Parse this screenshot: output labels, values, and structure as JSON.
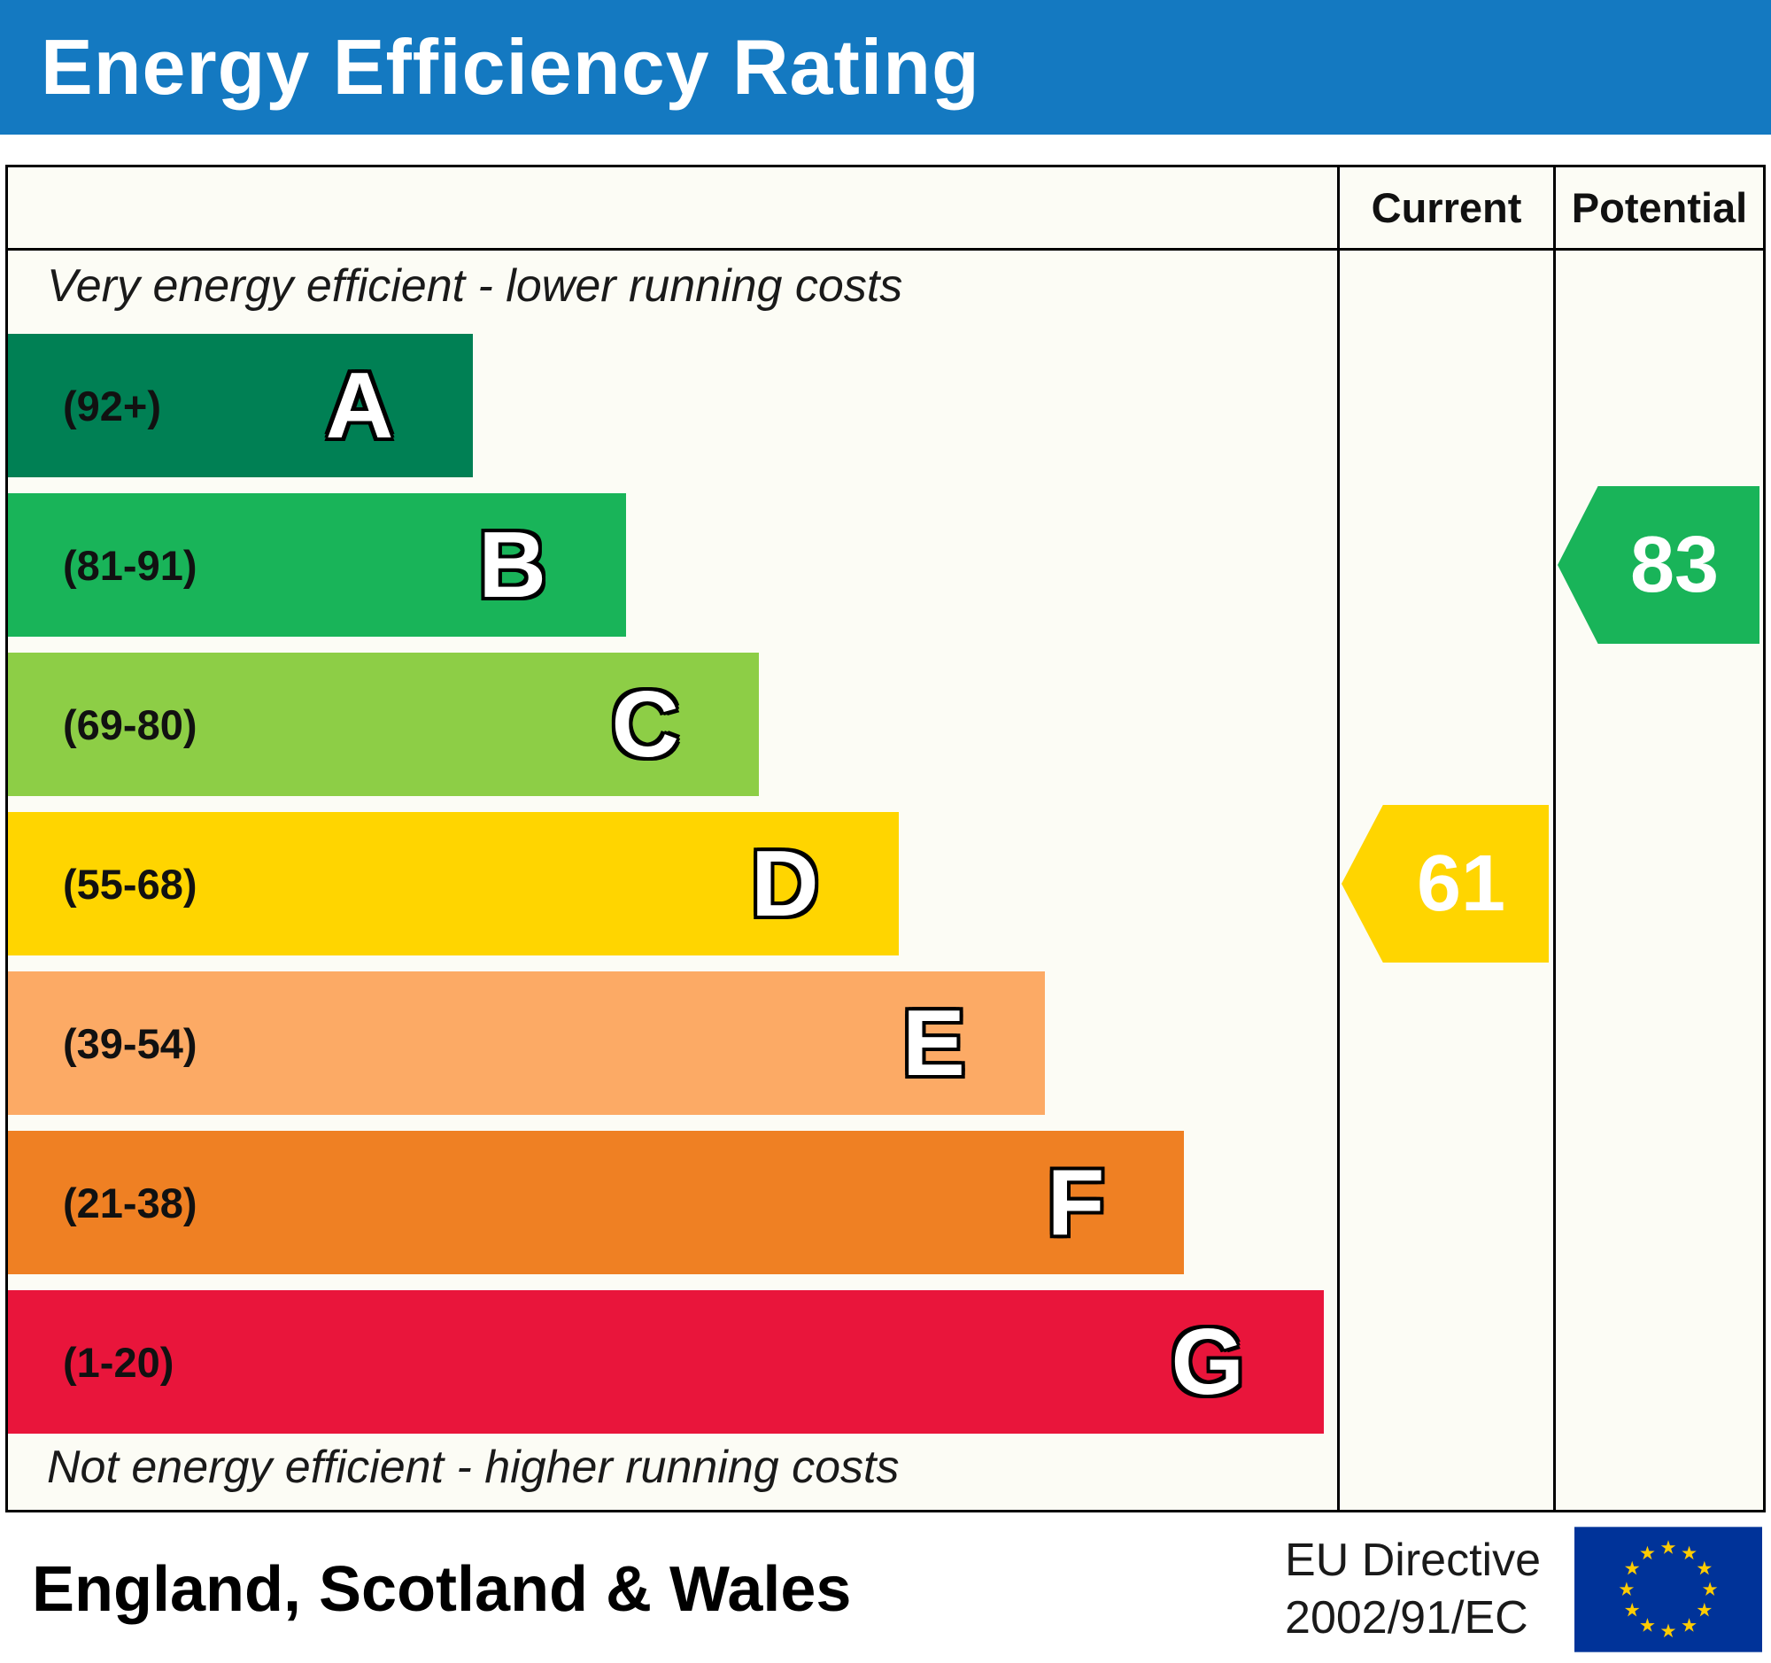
{
  "title": "Energy Efficiency Rating",
  "columns": {
    "current": "Current",
    "potential": "Potential"
  },
  "notes": {
    "top": "Very energy efficient - lower running costs",
    "bottom": "Not energy efficient - higher running costs"
  },
  "chart_data": {
    "type": "bar",
    "title": "Energy Efficiency Rating",
    "bands": [
      {
        "letter": "A",
        "range": "(92+)",
        "min": 92,
        "max": 100,
        "color": "#008054",
        "width_pct": 35
      },
      {
        "letter": "B",
        "range": "(81-91)",
        "min": 81,
        "max": 91,
        "color": "#19b459",
        "width_pct": 46.5
      },
      {
        "letter": "C",
        "range": "(69-80)",
        "min": 69,
        "max": 80,
        "color": "#8dce46",
        "width_pct": 56.5
      },
      {
        "letter": "D",
        "range": "(55-68)",
        "min": 55,
        "max": 68,
        "color": "#ffd500",
        "width_pct": 67
      },
      {
        "letter": "E",
        "range": "(39-54)",
        "min": 39,
        "max": 54,
        "color": "#fcaa65",
        "width_pct": 78
      },
      {
        "letter": "F",
        "range": "(21-38)",
        "min": 21,
        "max": 38,
        "color": "#ef8023",
        "width_pct": 88.5
      },
      {
        "letter": "G",
        "range": "(1-20)",
        "min": 1,
        "max": 20,
        "color": "#e9153b",
        "width_pct": 99
      }
    ],
    "current": {
      "label": "Current",
      "value": 61,
      "band": "D",
      "color": "#ffd500"
    },
    "potential": {
      "label": "Potential",
      "value": 83,
      "band": "B",
      "color": "#19b459"
    }
  },
  "footer": {
    "region": "England, Scotland & Wales",
    "directive_line1": "EU Directive",
    "directive_line2": "2002/91/EC"
  },
  "colors": {
    "header_blue": "#1479c1",
    "flag_blue": "#003399",
    "flag_star": "#ffcc00"
  }
}
